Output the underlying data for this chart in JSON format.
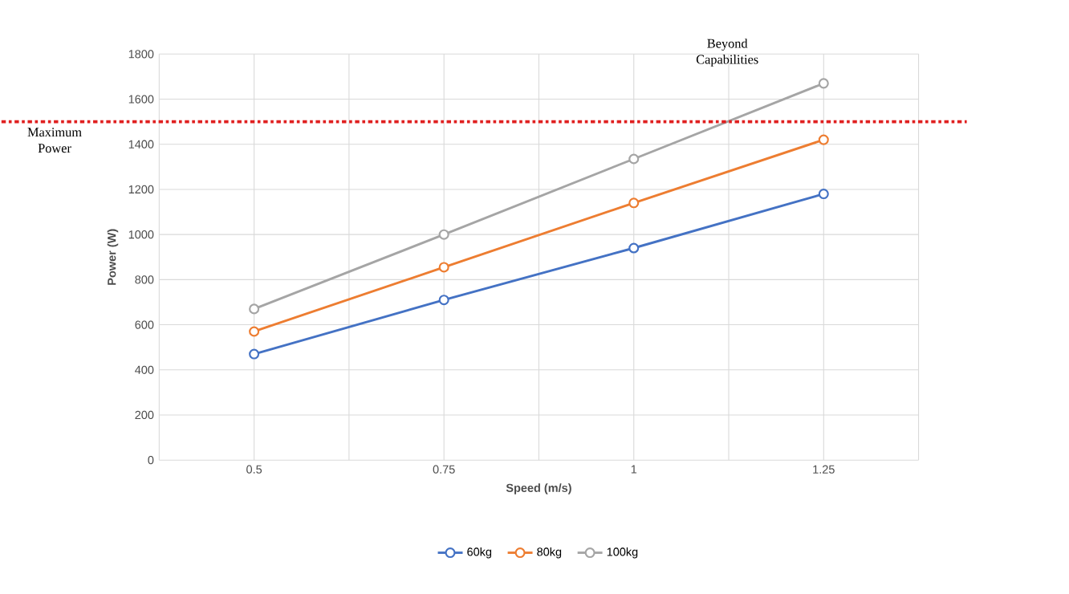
{
  "chart_data": {
    "type": "line",
    "xlabel": "Speed (m/s)",
    "ylabel": "Power (W)",
    "categories": [
      "0.5",
      "0.75",
      "1",
      "1.25"
    ],
    "series": [
      {
        "name": "60kg",
        "color": "#4472c4",
        "values": [
          470,
          710,
          940,
          1180
        ]
      },
      {
        "name": "80kg",
        "color": "#ed7d31",
        "values": [
          570,
          855,
          1140,
          1420
        ]
      },
      {
        "name": "100kg",
        "color": "#a5a5a5",
        "values": [
          670,
          1000,
          1335,
          1670
        ]
      }
    ],
    "ylim": [
      0,
      1800
    ],
    "yticks": [
      0,
      200,
      400,
      600,
      800,
      1000,
      1200,
      1400,
      1600,
      1800
    ],
    "ref_lines": [
      {
        "axis": "y",
        "value": 1500,
        "label": "Maximum Power",
        "color": "#e02020",
        "line_style": "dashdot"
      }
    ],
    "annotations": [
      "Beyond Capabilities"
    ],
    "grid": true,
    "legend": "bottom",
    "marker": "circle",
    "line_style": "solid"
  }
}
